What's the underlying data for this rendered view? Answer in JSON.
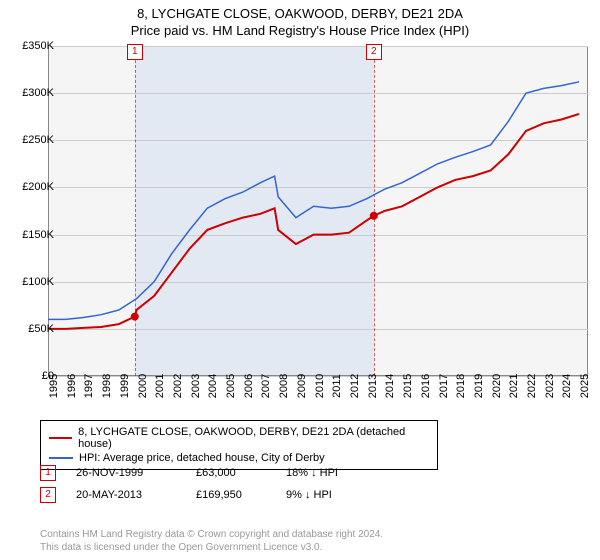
{
  "title_line1": "8, LYCHGATE CLOSE, OAKWOOD, DERBY, DE21 2DA",
  "title_line2": "Price paid vs. HM Land Registry's House Price Index (HPI)",
  "chart": {
    "type": "line",
    "background_color": "#f5f5f5",
    "grid_color": "#cccccc",
    "border_color": "#888888",
    "shade_color": "rgba(100,150,220,0.12)",
    "xlim": [
      1995,
      2025.5
    ],
    "ylim": [
      0,
      350000
    ],
    "ytick_step": 50000,
    "ytick_labels": [
      "£0",
      "£50K",
      "£100K",
      "£150K",
      "£200K",
      "£250K",
      "£300K",
      "£350K"
    ],
    "xtick_step": 1,
    "xtick_labels": [
      "1995",
      "1996",
      "1997",
      "1998",
      "1999",
      "2000",
      "2001",
      "2002",
      "2003",
      "2004",
      "2005",
      "2006",
      "2007",
      "2008",
      "2009",
      "2010",
      "2011",
      "2012",
      "2013",
      "2014",
      "2015",
      "2016",
      "2017",
      "2018",
      "2019",
      "2020",
      "2021",
      "2022",
      "2023",
      "2024",
      "2025"
    ],
    "label_fontsize": 11,
    "title_fontsize": 13,
    "series": [
      {
        "name": "8, LYCHGATE CLOSE, OAKWOOD, DERBY, DE21 2DA (detached house)",
        "color": "#cc0000",
        "line_width": 2,
        "x": [
          1995,
          1996,
          1997,
          1998,
          1999,
          1999.9,
          2000,
          2001,
          2002,
          2003,
          2004,
          2005,
          2006,
          2007,
          2007.8,
          2008,
          2009,
          2010,
          2011,
          2012,
          2013,
          2013.4,
          2014,
          2015,
          2016,
          2017,
          2018,
          2019,
          2020,
          2021,
          2022,
          2023,
          2024,
          2025
        ],
        "y": [
          50000,
          50000,
          51000,
          52000,
          55000,
          63000,
          70000,
          85000,
          110000,
          135000,
          155000,
          162000,
          168000,
          172000,
          178000,
          155000,
          140000,
          150000,
          150000,
          152000,
          165000,
          169950,
          175000,
          180000,
          190000,
          200000,
          208000,
          212000,
          218000,
          235000,
          260000,
          268000,
          272000,
          278000
        ]
      },
      {
        "name": "HPI: Average price, detached house, City of Derby",
        "color": "#3366cc",
        "line_width": 1.5,
        "x": [
          1995,
          1996,
          1997,
          1998,
          1999,
          2000,
          2001,
          2002,
          2003,
          2004,
          2005,
          2006,
          2007,
          2007.8,
          2008,
          2009,
          2010,
          2011,
          2012,
          2013,
          2014,
          2015,
          2016,
          2017,
          2018,
          2019,
          2020,
          2021,
          2022,
          2023,
          2024,
          2025
        ],
        "y": [
          60000,
          60000,
          62000,
          65000,
          70000,
          82000,
          100000,
          130000,
          155000,
          178000,
          188000,
          195000,
          205000,
          212000,
          190000,
          168000,
          180000,
          178000,
          180000,
          188000,
          198000,
          205000,
          215000,
          225000,
          232000,
          238000,
          245000,
          270000,
          300000,
          305000,
          308000,
          312000
        ]
      }
    ],
    "markers": [
      {
        "label": "1",
        "x": 1999.9,
        "y": 63000,
        "date": "26-NOV-1999",
        "price": "£63,000",
        "pct_hpi": "18% ↓ HPI"
      },
      {
        "label": "2",
        "x": 2013.4,
        "y": 169950,
        "date": "20-MAY-2013",
        "price": "£169,950",
        "pct_hpi": "9% ↓ HPI"
      }
    ],
    "shade_range": [
      1999.9,
      2013.4
    ]
  },
  "legend": {
    "rows": [
      {
        "color": "#cc0000",
        "label": "8, LYCHGATE CLOSE, OAKWOOD, DERBY, DE21 2DA (detached house)"
      },
      {
        "color": "#3366cc",
        "label": "HPI: Average price, detached house, City of Derby"
      }
    ]
  },
  "footer_line1": "Contains HM Land Registry data © Crown copyright and database right 2024.",
  "footer_line2": "This data is licensed under the Open Government Licence v3.0."
}
